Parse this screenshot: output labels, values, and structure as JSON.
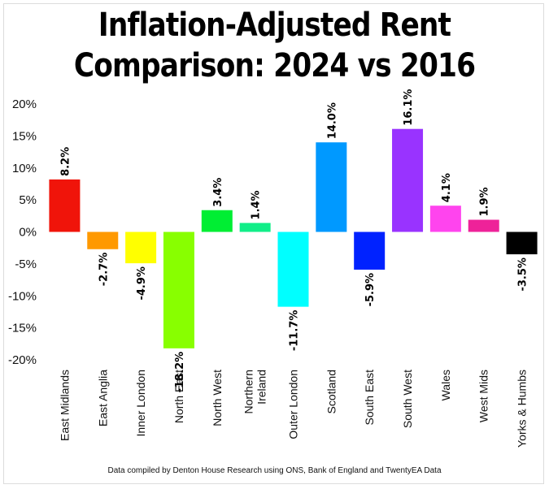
{
  "chart_data": {
    "type": "bar",
    "title_line1": "Inflation-Adjusted Rent",
    "title_line2": "Comparison: 2024 vs 2016",
    "categories": [
      "East Midlands",
      "East Anglia",
      "Inner London",
      "North East",
      "North West",
      "Northern Ireland",
      "Outer London",
      "Scotland",
      "South East",
      "South West",
      "Wales",
      "West Mids",
      "Yorks & Humbs"
    ],
    "category_lines": [
      [
        "East Midlands"
      ],
      [
        "East Anglia"
      ],
      [
        "Inner London"
      ],
      [
        "North East"
      ],
      [
        "North West"
      ],
      [
        "Northern",
        "Ireland"
      ],
      [
        "Outer London"
      ],
      [
        "Scotland"
      ],
      [
        "South East"
      ],
      [
        "South West"
      ],
      [
        "Wales"
      ],
      [
        "West Mids"
      ],
      [
        "Yorks & Humbs"
      ]
    ],
    "values": [
      8.2,
      -2.7,
      -4.9,
      -18.2,
      3.4,
      1.4,
      -11.7,
      14.0,
      -5.9,
      16.1,
      4.1,
      1.9,
      -3.5
    ],
    "value_labels": [
      "8.2%",
      "-2.7%",
      "-4.9%",
      "-18.2%",
      "3.4%",
      "1.4%",
      "-11.7%",
      "14.0%",
      "-5.9%",
      "16.1%",
      "4.1%",
      "1.9%",
      "-3.5%"
    ],
    "colors": [
      "#f0140a",
      "#ff9900",
      "#ffff00",
      "#88ff00",
      "#00ee33",
      "#11ee88",
      "#00ffff",
      "#0099ff",
      "#0022ff",
      "#9933ff",
      "#ff44ee",
      "#ee2299",
      "#000000"
    ],
    "yticks": [
      20,
      15,
      10,
      5,
      0,
      -5,
      -10,
      -15,
      -20
    ],
    "ytick_labels": [
      "20%",
      "15%",
      "10%",
      "5%",
      "0%",
      "-5%",
      "-10%",
      "-15%",
      "-20%"
    ],
    "ylim": [
      -20,
      20
    ],
    "grid": false,
    "legend": "none"
  },
  "footnote": "Data compiled by Denton House Research using ONS, Bank of England and TwentyEA Data"
}
